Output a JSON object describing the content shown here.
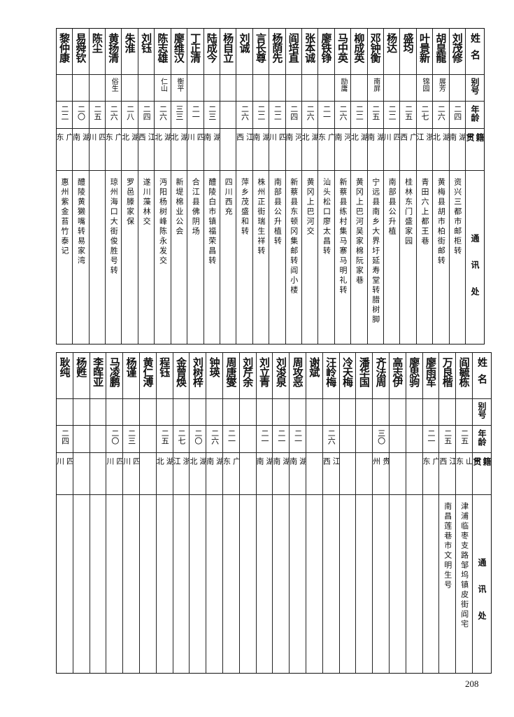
{
  "headers": {
    "name": "姓名",
    "alias": "别号",
    "age": "年龄",
    "native": "籍贯",
    "address": "通讯处"
  },
  "top_table": [
    {
      "name": "刘茂修",
      "alias": "",
      "age": "二四",
      "native": "湖南",
      "address": "资兴三都市邮柜转"
    },
    {
      "name": "胡皇龍",
      "alias": "展芳",
      "age": "二六",
      "native": "湖北",
      "address": "黄梅县胡市柏街邮转"
    },
    {
      "name": "叶景新",
      "alias": "锦园",
      "age": "二七",
      "native": "浙江",
      "address": "青田六上都王巷"
    },
    {
      "name": "盛均",
      "alias": "",
      "age": "二五",
      "native": "广西",
      "address": "桂林东门盛家园"
    },
    {
      "name": "杨达",
      "alias": "",
      "age": "二二",
      "native": "四川",
      "address": "南部县公升植"
    },
    {
      "name": "邓钟衡",
      "alias": "南屏",
      "age": "二五",
      "native": "湖南",
      "address": "宁远县南乡大界圩延寿堂转腊树脚"
    },
    {
      "name": "柳成英",
      "alias": "",
      "age": "二二",
      "native": "湖北",
      "address": "黄冈上巴河吴家棉阮家巷"
    },
    {
      "name": "马中英",
      "alias": "励庸",
      "age": "二六",
      "native": "河南",
      "address": "新蔡县练村集马寨马明礼转"
    },
    {
      "name": "廖铁铮",
      "alias": "",
      "age": "二一",
      "native": "广东",
      "address": "汕头松口廖太昌转"
    },
    {
      "name": "张本诚",
      "alias": "",
      "age": "二六",
      "native": "湖北",
      "address": "黄冈上巴河交"
    },
    {
      "name": "阎培直",
      "alias": "",
      "age": "二四",
      "native": "河南",
      "address": "新蔡县东顿冈集邮转阎小楼"
    },
    {
      "name": "杨荫先",
      "alias": "",
      "age": "二二",
      "native": "四川",
      "address": "南部县公升植转"
    },
    {
      "name": "言长尊",
      "alias": "",
      "age": "二二",
      "native": "湖南",
      "address": "株州正街瑞生祥转"
    },
    {
      "name": "刘诚",
      "alias": "",
      "age": "二六",
      "native": "江西",
      "address": "萍乡茂盛和转"
    },
    {
      "name": "杨自立",
      "alias": "",
      "age": "",
      "native": "",
      "address": "四川西充"
    },
    {
      "name": "陆成今",
      "alias": "",
      "age": "二三",
      "native": "湖南",
      "address": "醴陵白市镇福荣昌转"
    },
    {
      "name": "丁正清",
      "alias": "",
      "age": "二一",
      "native": "四川",
      "address": "合江县佛阴场"
    },
    {
      "name": "廖维汉",
      "alias": "衡平",
      "age": "三三",
      "native": "湖北",
      "address": "新堤棉业公会"
    },
    {
      "name": "陈志雄",
      "alias": "仁山",
      "age": "二六",
      "native": "湖北",
      "address": "沔阳杨树峰陈永发交"
    },
    {
      "name": "刘钰",
      "alias": "",
      "age": "二四",
      "native": "江西",
      "address": "遂川藻林交"
    },
    {
      "name": "朱淮",
      "alias": "",
      "age": "二八",
      "native": "湖北",
      "address": "罗邑滕家保"
    },
    {
      "name": "黄扬清",
      "alias": "俗生",
      "age": "二六",
      "native": "广东",
      "address": "琼州海口大街俊胜号转"
    },
    {
      "name": "陈尘",
      "alias": "",
      "age": "二五",
      "native": "四川",
      "address": ""
    },
    {
      "name": "易舜钦",
      "alias": "",
      "age": "二〇",
      "native": "湖南",
      "address": "醴陵黄獭嘴转易家湾"
    },
    {
      "name": "黎仲康",
      "alias": "",
      "age": "二二",
      "native": "广东",
      "address": "惠州紫金苔竹泰记"
    }
  ],
  "bottom_table": [
    {
      "name": "阎毓栋",
      "alias": "",
      "age": "二五",
      "native": "山东",
      "address": "津浦临枣支路邹坞镇皮街阎宅"
    },
    {
      "name": "万良楷",
      "alias": "",
      "age": "二五",
      "native": "江西",
      "address": "南昌莲巷市文明生号"
    },
    {
      "name": "廖雨军",
      "alias": "",
      "age": "二一",
      "native": "广东",
      "address": ""
    },
    {
      "name": "廖思驹",
      "alias": "",
      "age": "",
      "native": "",
      "address": ""
    },
    {
      "name": "高志伊",
      "alias": "",
      "age": "",
      "native": "",
      "address": ""
    },
    {
      "name": "齐法周",
      "alias": "",
      "age": "三〇",
      "native": "贵州",
      "address": ""
    },
    {
      "name": "潘华国",
      "alias": "",
      "age": "",
      "native": "",
      "address": ""
    },
    {
      "name": "冷天梅",
      "alias": "",
      "age": "",
      "native": "",
      "address": ""
    },
    {
      "name": "汪岭梅",
      "alias": "",
      "age": "二六",
      "native": "江西",
      "address": ""
    },
    {
      "name": "谢斌",
      "alias": "",
      "age": "",
      "native": "",
      "address": ""
    },
    {
      "name": "周攻恶",
      "alias": "",
      "age": "二一",
      "native": "湖南",
      "address": ""
    },
    {
      "name": "刘浚泉",
      "alias": "",
      "age": "二一",
      "native": "湖南",
      "address": ""
    },
    {
      "name": "刘立青",
      "alias": "",
      "age": "二一",
      "native": "湖南",
      "address": ""
    },
    {
      "name": "刘芹余",
      "alias": "",
      "age": "",
      "native": "",
      "address": ""
    },
    {
      "name": "周唐燮",
      "alias": "",
      "age": "二一",
      "native": "广东",
      "address": ""
    },
    {
      "name": "钟瑛",
      "alias": "",
      "age": "二六",
      "native": "湖南",
      "address": ""
    },
    {
      "name": "刘树梓",
      "alias": "",
      "age": "二〇",
      "native": "湖北",
      "address": ""
    },
    {
      "name": "金曾焕",
      "alias": "",
      "age": "二七",
      "native": "浙江",
      "address": ""
    },
    {
      "name": "程钰",
      "alias": "",
      "age": "二五",
      "native": "湖北",
      "address": ""
    },
    {
      "name": "黄仁溥",
      "alias": "",
      "age": "",
      "native": "",
      "address": ""
    },
    {
      "name": "杨谨",
      "alias": "",
      "age": "二三",
      "native": "四川",
      "address": ""
    },
    {
      "name": "马凌鹏",
      "alias": "",
      "age": "二〇",
      "native": "四川",
      "address": ""
    },
    {
      "name": "李晖亚",
      "alias": "",
      "age": "",
      "native": "",
      "address": ""
    },
    {
      "name": "杨甦",
      "alias": "",
      "age": "",
      "native": "",
      "address": ""
    },
    {
      "name": "耿纯",
      "alias": "",
      "age": "二四",
      "native": "四川",
      "address": ""
    }
  ],
  "page_number": "208"
}
